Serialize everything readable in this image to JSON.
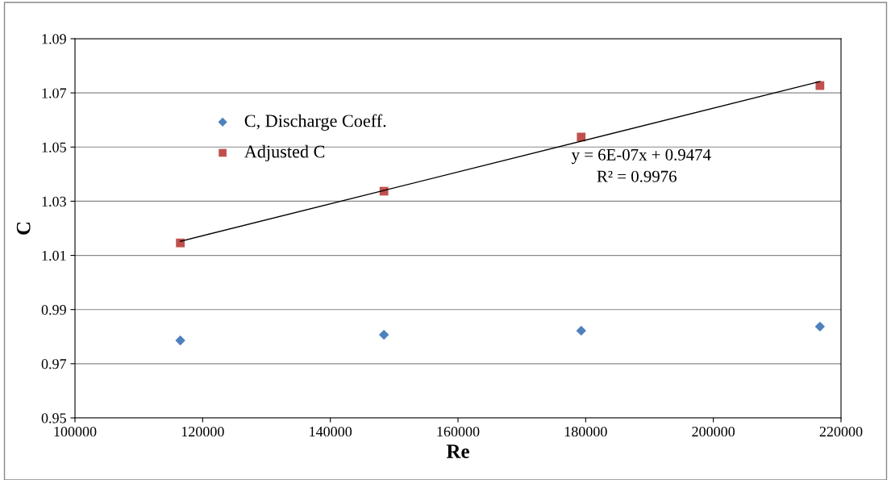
{
  "chart_data": {
    "type": "scatter",
    "xlabel": "Re",
    "ylabel": "C",
    "xlim": [
      100000,
      220000
    ],
    "xticks": [
      100000,
      120000,
      140000,
      160000,
      180000,
      200000,
      220000
    ],
    "ylim": [
      0.95,
      1.09
    ],
    "yticks": [
      0.95,
      0.97,
      0.99,
      1.01,
      1.03,
      1.05,
      1.07,
      1.09
    ],
    "grid": "y",
    "legend": "top left",
    "series": [
      {
        "name": "C, Discharge Coeff.",
        "color": "#4f81bd",
        "marker": "diamond",
        "x": [
          116500,
          148400,
          179300,
          216700
        ],
        "values": [
          0.9786,
          0.9807,
          0.9822,
          0.9837
        ]
      },
      {
        "name": "Adjusted C",
        "color": "#c0504d",
        "marker": "square",
        "x": [
          116500,
          148400,
          179300,
          216700
        ],
        "values": [
          1.0146,
          1.0337,
          1.0537,
          1.0727
        ]
      },
      {
        "type": "line",
        "color": "#000000",
        "marker": "none",
        "x": [
          116500,
          216700
        ],
        "values": [
          1.0152,
          1.0742
        ]
      }
    ],
    "annotations": [
      "y = 6E-07x + 0.9474",
      "R² = 0.9976"
    ]
  }
}
